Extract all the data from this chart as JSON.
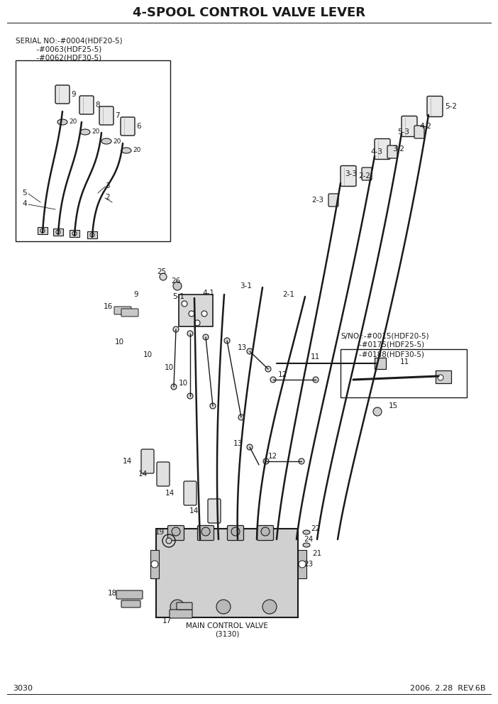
{
  "title": "4-SPOOL CONTROL VALVE LEVER",
  "page_number": "3030",
  "date_rev": "2006. 2.28  REV.6B",
  "bg_color": "#ffffff",
  "line_color": "#1a1a1a",
  "title_fontsize": 13,
  "label_fontsize": 8,
  "small_fontsize": 7.5,
  "serial_note_line1": "SERIAL NO:-#0004(HDF20-5)",
  "serial_note_line2": "         -#0063(HDF25-5)",
  "serial_note_line3": "         -#0062(HDF30-5)",
  "sno_line1": "S/NO.:-#0015(HDF20-5)",
  "sno_line2": "        -#0175(HDF25-5)",
  "sno_line3": "        -#0188(HDF30-5)",
  "main_valve_label": "MAIN CONTROL VALVE\n(3130)"
}
